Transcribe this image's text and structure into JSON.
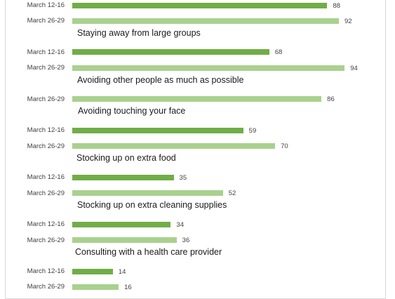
{
  "chart_data": {
    "type": "bar",
    "orientation": "horizontal",
    "xlim": [
      0,
      100
    ],
    "grid": false,
    "series_colors": {
      "March 12-16": "#70ad47",
      "March 26-29": "#a9d18e"
    },
    "groups": [
      {
        "label": "",
        "bars": [
          {
            "period": "March 12-16",
            "value": 88
          },
          {
            "period": "March 26-29",
            "value": 92
          }
        ]
      },
      {
        "label": "Staying away from large groups",
        "bars": [
          {
            "period": "March 12-16",
            "value": 68
          },
          {
            "period": "March 26-29",
            "value": 94
          }
        ]
      },
      {
        "label": "Avoiding other people as much as possible",
        "bars": [
          {
            "period": "March 26-29",
            "value": 86
          }
        ]
      },
      {
        "label": "Avoiding touching your face",
        "bars": [
          {
            "period": "March 12-16",
            "value": 59
          },
          {
            "period": "March 26-29",
            "value": 70
          }
        ]
      },
      {
        "label": "Stocking up on extra food",
        "bars": [
          {
            "period": "March 12-16",
            "value": 35
          },
          {
            "period": "March 26-29",
            "value": 52
          }
        ]
      },
      {
        "label": "Stocking up on extra cleaning supplies",
        "bars": [
          {
            "period": "March 12-16",
            "value": 34
          },
          {
            "period": "March 26-29",
            "value": 36
          }
        ]
      },
      {
        "label": "Consulting with a health care provider",
        "bars": [
          {
            "period": "March 12-16",
            "value": 14
          },
          {
            "period": "March 26-29",
            "value": 16
          }
        ]
      }
    ]
  }
}
